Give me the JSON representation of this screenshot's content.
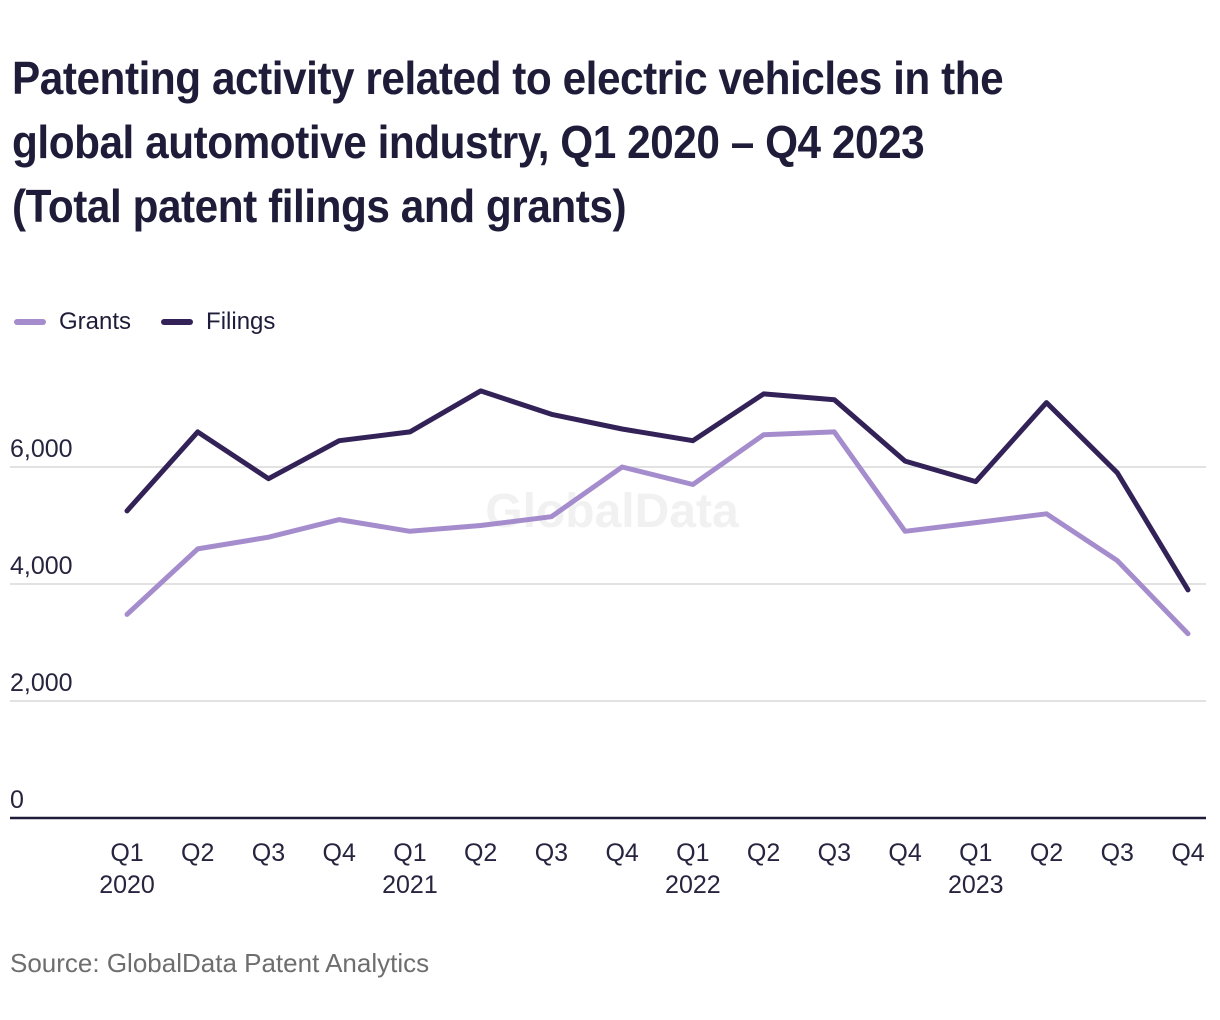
{
  "title_lines": [
    "Patenting activity related to electric vehicles in the",
    "global automotive industry, Q1 2020 – Q4 2023",
    "(Total patent filings and grants)"
  ],
  "legend": [
    {
      "label": "Grants",
      "color": "#a58dcd"
    },
    {
      "label": "Filings",
      "color": "#322257"
    }
  ],
  "watermark": "GlobalData",
  "source": "Source: GlobalData Patent Analytics",
  "chart_data": {
    "type": "line",
    "title": "Patenting activity related to electric vehicles in the global automotive industry, Q1 2020 – Q4 2023 (Total patent filings and grants)",
    "categories": [
      "Q1 2020",
      "Q2 2020",
      "Q3 2020",
      "Q4 2020",
      "Q1 2021",
      "Q2 2021",
      "Q3 2021",
      "Q4 2021",
      "Q1 2022",
      "Q2 2022",
      "Q3 2022",
      "Q4 2022",
      "Q1 2023",
      "Q2 2023",
      "Q3 2023",
      "Q4 2023"
    ],
    "x_tick_quarters": [
      "Q1",
      "Q2",
      "Q3",
      "Q4",
      "Q1",
      "Q2",
      "Q3",
      "Q4",
      "Q1",
      "Q2",
      "Q3",
      "Q4",
      "Q1",
      "Q2",
      "Q3",
      "Q4"
    ],
    "x_tick_years": {
      "0": "2020",
      "4": "2021",
      "8": "2022",
      "12": "2023"
    },
    "series": [
      {
        "name": "Grants",
        "color": "#a58dcd",
        "values": [
          3480,
          4600,
          4800,
          5100,
          4900,
          5000,
          5150,
          6000,
          5700,
          6550,
          6600,
          4900,
          5050,
          5200,
          4400,
          3150
        ]
      },
      {
        "name": "Filings",
        "color": "#322257",
        "values": [
          5250,
          6600,
          5800,
          6450,
          6600,
          7300,
          6900,
          6650,
          6450,
          7250,
          7150,
          6100,
          5750,
          7100,
          5900,
          3900
        ]
      }
    ],
    "ylim": [
      0,
      7500
    ],
    "yticks": [
      0,
      2000,
      4000,
      6000
    ],
    "ytick_labels": [
      "0",
      "2,000",
      "4,000",
      "6,000"
    ],
    "grid": "horizontal",
    "legend_position": "top-left",
    "colors": {
      "axis": "#1e1c38",
      "gridline": "#d9d9d9",
      "tick_text": "#26243e",
      "watermark": "#f1f1f1"
    }
  }
}
